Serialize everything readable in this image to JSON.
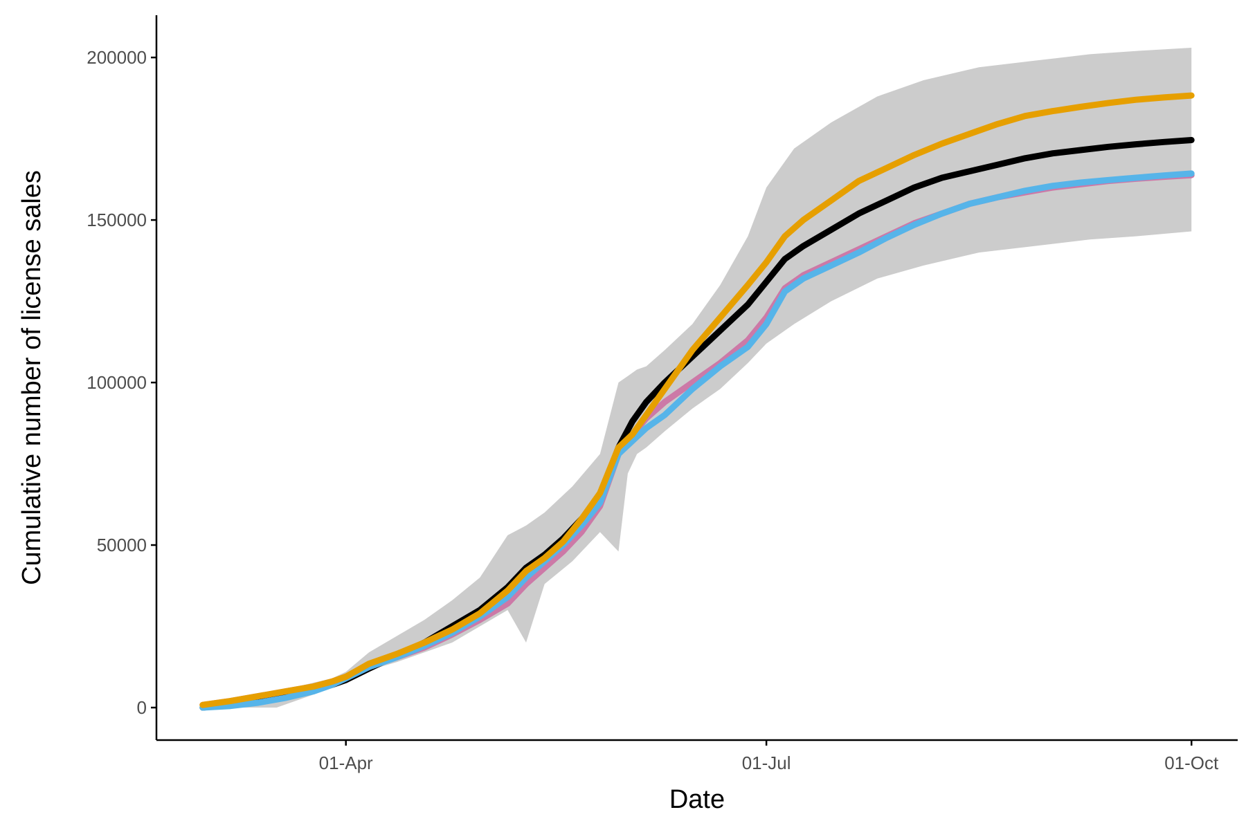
{
  "chart_data": {
    "type": "line",
    "title": "",
    "xlabel": "Date",
    "ylabel": "Cumulative number of license sales",
    "x_tick_labels": [
      {
        "label": "01-Apr",
        "day": 91
      },
      {
        "label": "01-Jul",
        "day": 182
      },
      {
        "label": "01-Oct",
        "day": 274
      }
    ],
    "y_ticks": [
      0,
      50000,
      100000,
      150000,
      200000
    ],
    "y_tick_labels": [
      "0",
      "50000",
      "100000",
      "150000",
      "200000"
    ],
    "xlim": [
      50,
      284
    ],
    "ylim": [
      -10000,
      213000
    ],
    "grid": false,
    "legend": "none",
    "band": {
      "color": "#cccccc",
      "x": [
        60,
        68,
        76,
        82,
        88,
        91,
        96,
        102,
        108,
        114,
        120,
        126,
        130,
        134,
        140,
        146,
        150,
        152,
        154,
        156,
        160,
        166,
        172,
        178,
        182,
        188,
        196,
        206,
        216,
        228,
        240,
        252,
        262,
        274
      ],
      "lower": [
        0,
        0,
        0,
        3000,
        6000,
        8000,
        11500,
        14000,
        17000,
        20000,
        25000,
        30000,
        20000,
        38000,
        45000,
        54000,
        48000,
        72000,
        78000,
        80000,
        85000,
        92000,
        98000,
        106000,
        112000,
        118000,
        125000,
        132000,
        136000,
        140000,
        142000,
        144000,
        145000,
        146500
      ],
      "upper": [
        1500,
        3000,
        5000,
        7000,
        9000,
        11000,
        17000,
        22000,
        27000,
        33000,
        40000,
        53000,
        56000,
        60000,
        68000,
        78000,
        100000,
        102000,
        104000,
        105000,
        110000,
        118000,
        130000,
        145000,
        160000,
        172000,
        180000,
        188000,
        193000,
        197000,
        199000,
        201000,
        202000,
        203000
      ]
    },
    "series": [
      {
        "color": "#000000",
        "x": [
          60,
          66,
          72,
          78,
          84,
          88,
          91,
          96,
          102,
          108,
          114,
          120,
          126,
          130,
          134,
          138,
          142,
          146,
          150,
          153,
          156,
          160,
          166,
          172,
          178,
          182,
          186,
          190,
          196,
          202,
          208,
          214,
          220,
          226,
          232,
          238,
          244,
          250,
          256,
          262,
          268,
          274
        ],
        "y": [
          0,
          1000,
          2500,
          4000,
          5500,
          7000,
          8500,
          12000,
          16000,
          20000,
          25000,
          30000,
          37000,
          43000,
          47000,
          52000,
          58000,
          65000,
          80000,
          88000,
          94000,
          100000,
          108000,
          116000,
          124000,
          131000,
          138000,
          142000,
          147000,
          152000,
          156000,
          160000,
          163000,
          165000,
          167000,
          169000,
          170500,
          171500,
          172500,
          173300,
          174000,
          174600
        ]
      },
      {
        "color": "#cc79a7",
        "x": [
          60,
          66,
          72,
          78,
          84,
          88,
          91,
          96,
          102,
          108,
          114,
          120,
          126,
          130,
          134,
          138,
          142,
          146,
          150,
          153,
          156,
          160,
          166,
          172,
          178,
          182,
          186,
          190,
          196,
          202,
          208,
          214,
          220,
          226,
          232,
          238,
          244,
          250,
          256,
          262,
          268,
          274
        ],
        "y": [
          800,
          2000,
          3500,
          5000,
          6500,
          8000,
          9500,
          12500,
          15500,
          18500,
          22500,
          27000,
          32000,
          38000,
          43000,
          48000,
          54000,
          62000,
          78000,
          84000,
          89000,
          94000,
          100000,
          106000,
          113000,
          120000,
          129000,
          133000,
          137000,
          141000,
          145000,
          149000,
          152000,
          155000,
          157000,
          158500,
          160000,
          161000,
          162000,
          162700,
          163300,
          163800
        ]
      },
      {
        "color": "#56b4e9",
        "x": [
          60,
          66,
          72,
          78,
          84,
          88,
          91,
          96,
          102,
          108,
          114,
          120,
          126,
          130,
          134,
          138,
          142,
          146,
          150,
          153,
          156,
          160,
          166,
          172,
          178,
          182,
          186,
          190,
          196,
          202,
          208,
          214,
          220,
          226,
          232,
          238,
          244,
          250,
          256,
          262,
          268,
          274
        ],
        "y": [
          0,
          500,
          1500,
          3000,
          5000,
          7000,
          9000,
          12500,
          15500,
          19000,
          23000,
          28000,
          34000,
          40000,
          45000,
          50000,
          56000,
          63000,
          78000,
          82000,
          86000,
          90000,
          98000,
          105000,
          111000,
          118000,
          128000,
          132000,
          136000,
          140000,
          144500,
          148500,
          152000,
          155000,
          157000,
          159000,
          160500,
          161500,
          162300,
          163000,
          163700,
          164300
        ]
      },
      {
        "color": "#e69f00",
        "x": [
          60,
          66,
          72,
          78,
          84,
          88,
          91,
          96,
          102,
          108,
          114,
          120,
          126,
          130,
          134,
          138,
          142,
          146,
          150,
          153,
          156,
          160,
          166,
          172,
          178,
          182,
          186,
          190,
          196,
          202,
          208,
          214,
          220,
          226,
          232,
          238,
          244,
          250,
          256,
          262,
          268,
          274
        ],
        "y": [
          800,
          2000,
          3500,
          5000,
          6500,
          8000,
          9500,
          13500,
          16500,
          20000,
          24000,
          29000,
          36000,
          42000,
          46000,
          51000,
          58000,
          66000,
          80000,
          84000,
          90000,
          98000,
          110000,
          120000,
          130000,
          137000,
          145000,
          150000,
          156000,
          162000,
          166000,
          170000,
          173500,
          176500,
          179500,
          182000,
          183500,
          184800,
          186000,
          187000,
          187700,
          188300
        ]
      }
    ]
  }
}
